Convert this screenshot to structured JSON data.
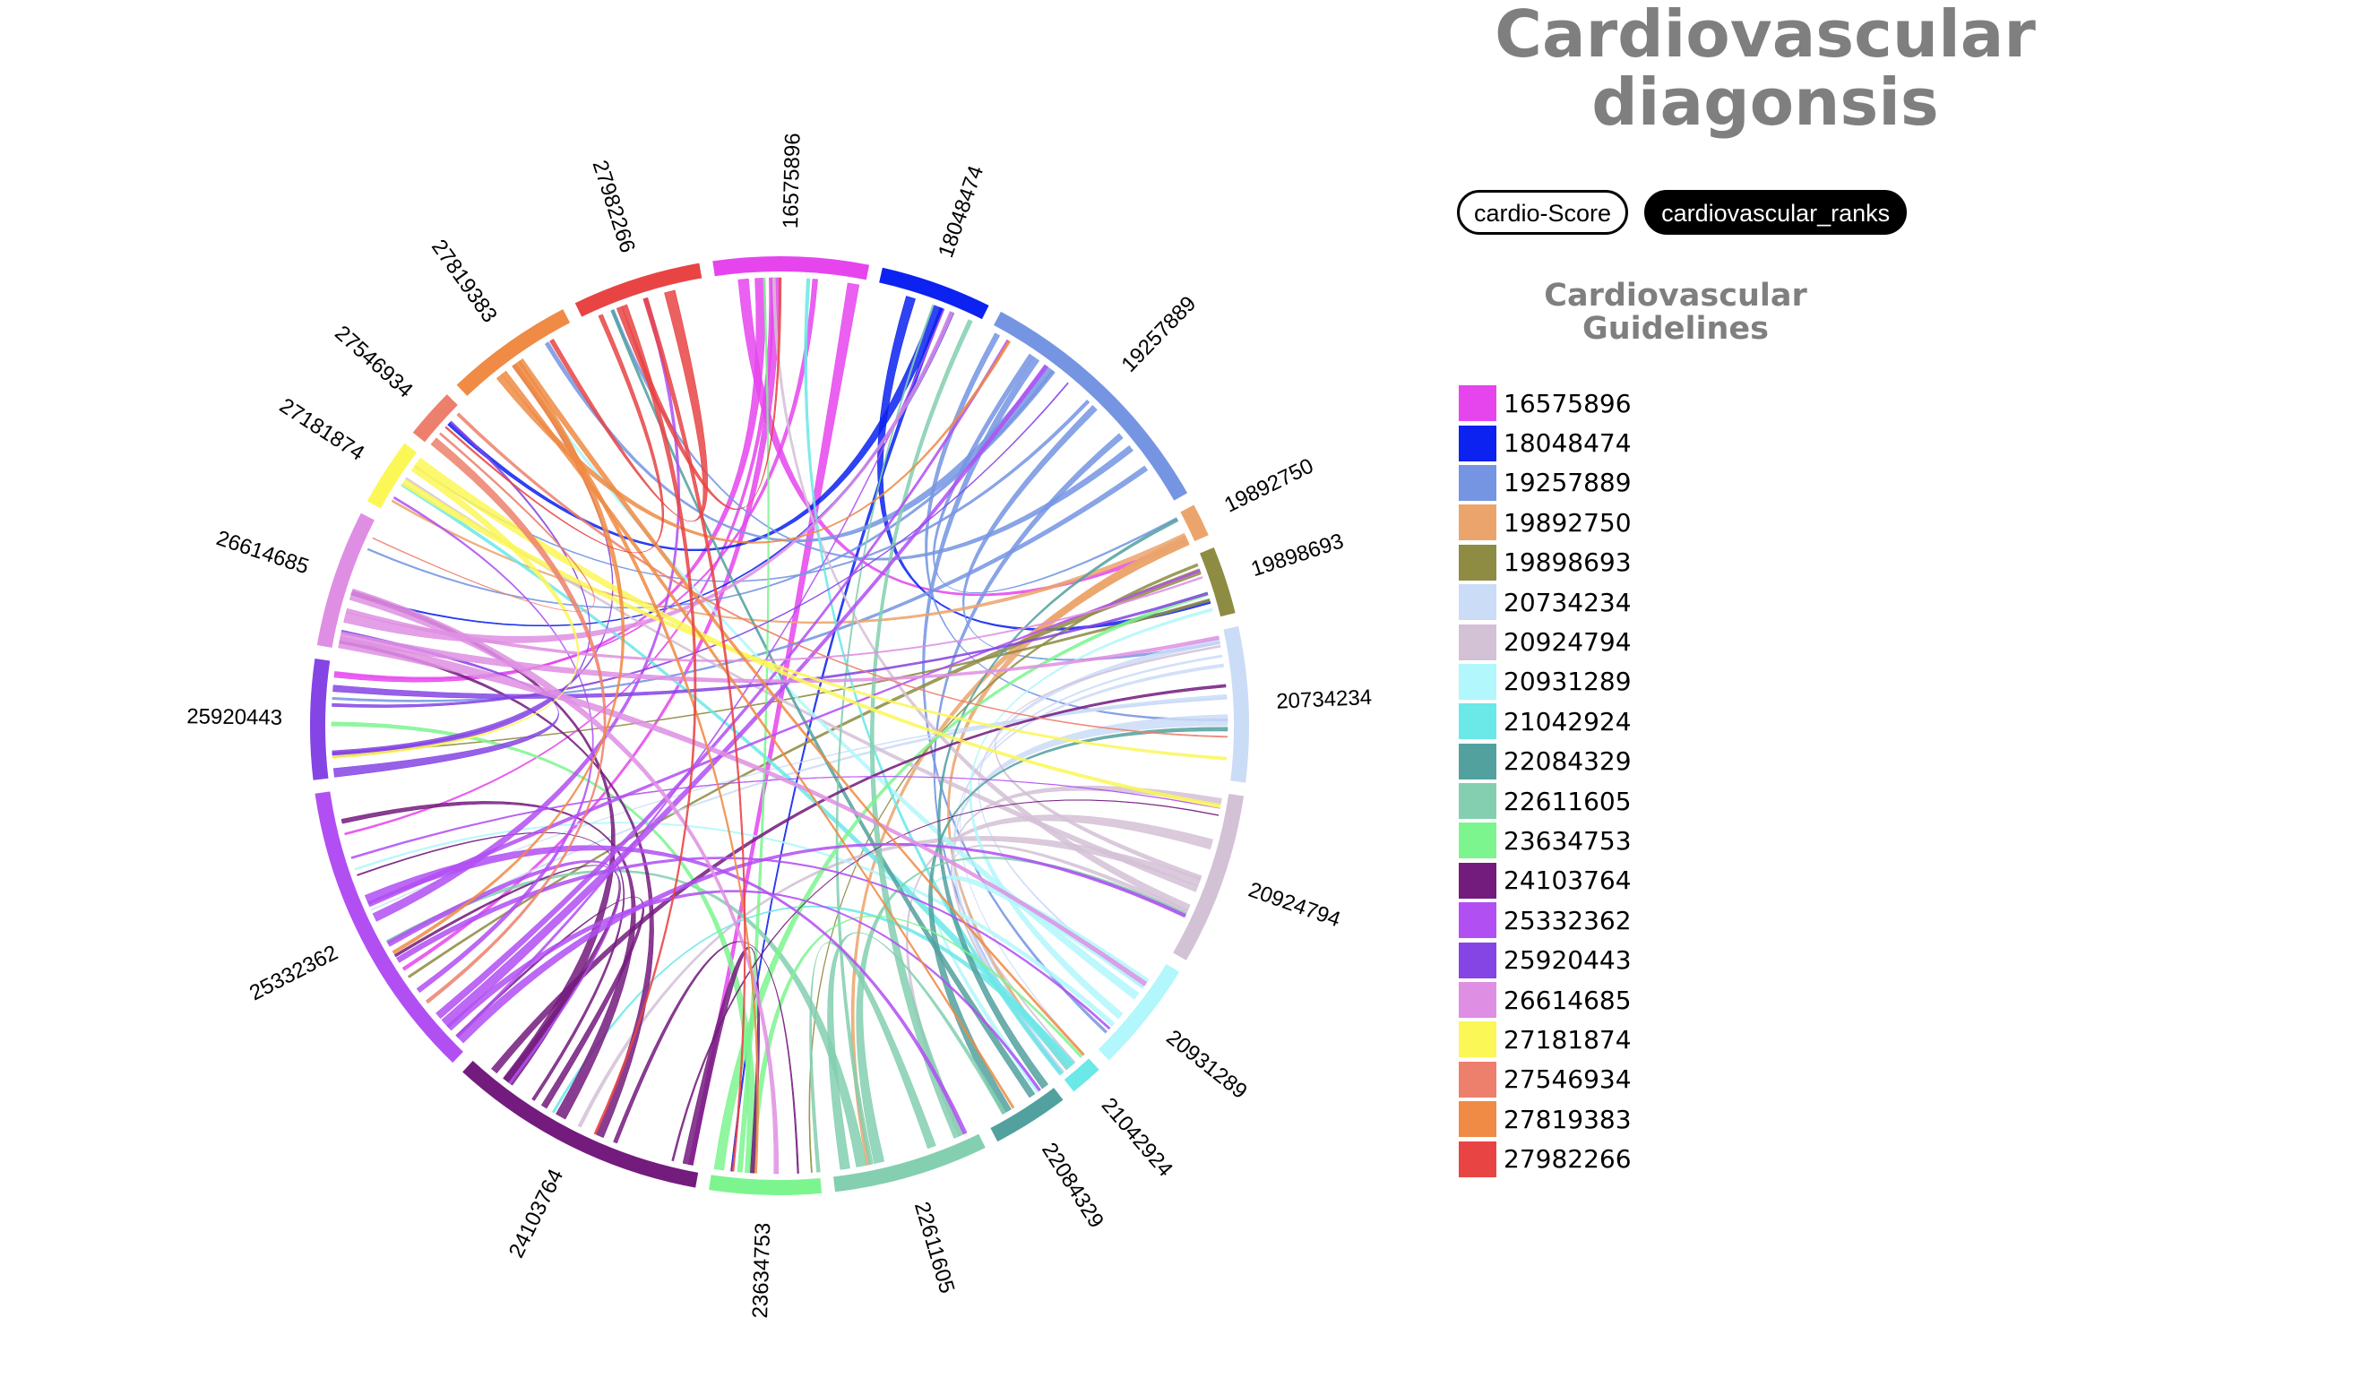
{
  "header": {
    "title_line1": "Cardiovascular",
    "title_line2": "diagonsis"
  },
  "toggles": {
    "score_label": "cardio-Score",
    "ranks_label": "cardiovascular_ranks",
    "active": "cardiovascular_ranks"
  },
  "legend": {
    "title_line1": "Cardiovascular",
    "title_line2": "Guidelines"
  },
  "chart_data": {
    "type": "chord",
    "groups": [
      {
        "name": "16575896",
        "color": "#e645ee",
        "value": 18
      },
      {
        "name": "18048474",
        "color": "#0b22f0",
        "value": 13
      },
      {
        "name": "19257889",
        "color": "#7595e3",
        "value": 30
      },
      {
        "name": "19892750",
        "color": "#eba56c",
        "value": 4
      },
      {
        "name": "19898693",
        "color": "#8e8c43",
        "value": 8
      },
      {
        "name": "20734234",
        "color": "#cbdcf7",
        "value": 18
      },
      {
        "name": "20924794",
        "color": "#d3c1d6",
        "value": 20
      },
      {
        "name": "20931289",
        "color": "#b1f7fb",
        "value": 13
      },
      {
        "name": "21042924",
        "color": "#6be8e8",
        "value": 4
      },
      {
        "name": "22084329",
        "color": "#52a19f",
        "value": 9
      },
      {
        "name": "22611605",
        "color": "#84cfb0",
        "value": 18
      },
      {
        "name": "23634753",
        "color": "#7cf58f",
        "value": 13
      },
      {
        "name": "24103764",
        "color": "#741b7e",
        "value": 30
      },
      {
        "name": "25332362",
        "color": "#b24ff3",
        "value": 35
      },
      {
        "name": "25920443",
        "color": "#8544e4",
        "value": 14
      },
      {
        "name": "26614685",
        "color": "#df8fe3",
        "value": 16
      },
      {
        "name": "27181874",
        "color": "#fbf757",
        "value": 8
      },
      {
        "name": "27546934",
        "color": "#ed806c",
        "value": 6
      },
      {
        "name": "27819383",
        "color": "#ef8b44",
        "value": 15
      },
      {
        "name": "27982266",
        "color": "#e84444",
        "value": 15
      }
    ]
  }
}
